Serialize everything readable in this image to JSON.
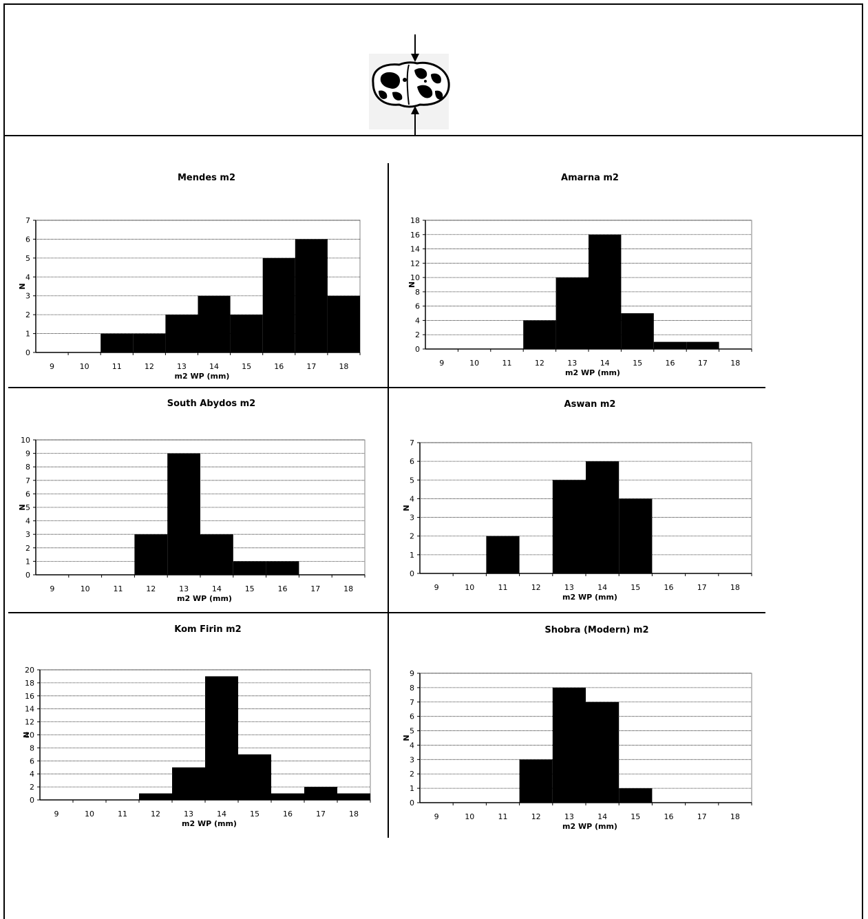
{
  "chart_data": [
    {
      "type": "bar",
      "title": "Mendes m2",
      "xlabel": "m2 WP (mm)",
      "ylabel": "N",
      "categories": [
        "9",
        "10",
        "11",
        "12",
        "13",
        "14",
        "15",
        "16",
        "17",
        "18"
      ],
      "values": [
        0,
        0,
        1,
        1,
        2,
        3,
        2,
        5,
        6,
        3
      ],
      "ylim": [
        0,
        7
      ],
      "yticks": [
        "0",
        "1",
        "2",
        "3",
        "4",
        "5",
        "6",
        "7"
      ],
      "grid": true
    },
    {
      "type": "bar",
      "title": "Amarna m2",
      "xlabel": "m2 WP (mm)",
      "ylabel": "N",
      "categories": [
        "9",
        "10",
        "11",
        "12",
        "13",
        "14",
        "15",
        "16",
        "17",
        "18"
      ],
      "values": [
        0,
        0,
        0,
        4,
        10,
        16,
        5,
        1,
        1,
        0
      ],
      "ylim": [
        0,
        18
      ],
      "yticks": [
        "0",
        "2",
        "4",
        "6",
        "8",
        "10",
        "12",
        "14",
        "16",
        "18"
      ],
      "grid": true
    },
    {
      "type": "bar",
      "title": "South Abydos m2",
      "xlabel": "m2 WP (mm)",
      "ylabel": "N",
      "categories": [
        "9",
        "10",
        "11",
        "12",
        "13",
        "14",
        "15",
        "16",
        "17",
        "18"
      ],
      "values": [
        0,
        0,
        0,
        3,
        9,
        3,
        1,
        1,
        0,
        0
      ],
      "ylim": [
        0,
        10
      ],
      "yticks": [
        "0",
        "1",
        "2",
        "3",
        "4",
        "5",
        "6",
        "7",
        "8",
        "9",
        "10"
      ],
      "grid": true
    },
    {
      "type": "bar",
      "title": "Aswan m2",
      "xlabel": "m2 WP (mm)",
      "ylabel": "N",
      "categories": [
        "9",
        "10",
        "11",
        "12",
        "13",
        "14",
        "15",
        "16",
        "17",
        "18"
      ],
      "values": [
        0,
        0,
        2,
        0,
        5,
        6,
        4,
        0,
        0,
        0
      ],
      "ylim": [
        0,
        7
      ],
      "yticks": [
        "0",
        "1",
        "2",
        "3",
        "4",
        "5",
        "6",
        "7"
      ],
      "grid": true
    },
    {
      "type": "bar",
      "title": "Kom Firin m2",
      "xlabel": "m2 WP (mm)",
      "ylabel": "N",
      "categories": [
        "9",
        "10",
        "11",
        "12",
        "13",
        "14",
        "15",
        "16",
        "17",
        "18"
      ],
      "values": [
        0,
        0,
        0,
        1,
        5,
        19,
        7,
        1,
        2,
        1
      ],
      "ylim": [
        0,
        20
      ],
      "yticks": [
        "0",
        "2",
        "4",
        "6",
        "8",
        "10",
        "12",
        "14",
        "16",
        "18",
        "20"
      ],
      "grid": true
    },
    {
      "type": "bar",
      "title": "Shobra (Modern) m2",
      "xlabel": "m2 WP (mm)",
      "ylabel": "N",
      "categories": [
        "9",
        "10",
        "11",
        "12",
        "13",
        "14",
        "15",
        "16",
        "17",
        "18"
      ],
      "values": [
        0,
        0,
        0,
        3,
        8,
        7,
        1,
        0,
        0,
        0
      ],
      "ylim": [
        0,
        9
      ],
      "yticks": [
        "0",
        "1",
        "2",
        "3",
        "4",
        "5",
        "6",
        "7",
        "8",
        "9"
      ],
      "grid": true
    }
  ],
  "colors": {
    "bar": "#000000",
    "grid": "#000000",
    "axis": "#000000",
    "text": "#000000"
  },
  "tooth_diagram_icon": "tooth-crown-occlusal-icon"
}
